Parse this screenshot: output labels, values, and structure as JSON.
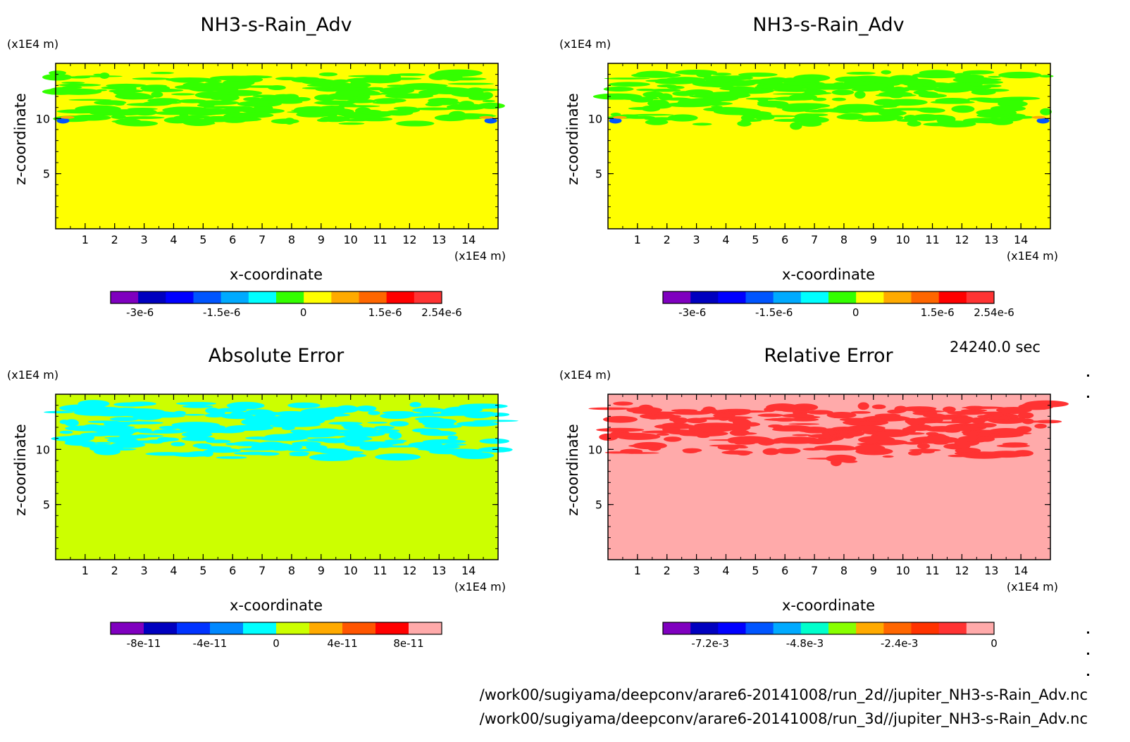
{
  "time_label": "24240.0 sec",
  "file_paths": [
    "/work00/sugiyama/deepconv/arare6-20141008/run_2d//jupiter_NH3-s-Rain_Adv.nc",
    "/work00/sugiyama/deepconv/arare6-20141008/run_3d//jupiter_NH3-s-Rain_Adv.nc"
  ],
  "chart_data": [
    {
      "type": "heatmap",
      "title": "NH3-s-Rain_Adv",
      "xlabel": "x-coordinate",
      "ylabel": "z-coordinate",
      "x_unit": "(x1E4 m)",
      "y_unit": "(x1E4 m)",
      "xlim": [
        0,
        15
      ],
      "ylim": [
        0,
        15
      ],
      "x_ticks": [
        "1",
        "2",
        "3",
        "4",
        "5",
        "6",
        "7",
        "8",
        "9",
        "10",
        "11",
        "12",
        "13",
        "14"
      ],
      "y_ticks": [
        "5",
        "10"
      ],
      "background_color": "#ffff00",
      "pattern_color": "#33ff00",
      "colorbar": {
        "colors": [
          "#7f00bf",
          "#0000bf",
          "#0000ff",
          "#0055ff",
          "#00aaff",
          "#00ffff",
          "#33ff00",
          "#ffff00",
          "#ffaa00",
          "#ff6600",
          "#ff0000",
          "#ff3333"
        ],
        "labels": [
          "-3e-6",
          "-1.5e-6",
          "0",
          "1.5e-6",
          "2.54e-6"
        ],
        "label_values": [
          -3e-06,
          -1.5e-06,
          0,
          1.5e-06,
          2.54e-06
        ],
        "range": [
          -3.54e-06,
          2.54e-06
        ]
      }
    },
    {
      "type": "heatmap",
      "title": "NH3-s-Rain_Adv",
      "xlabel": "x-coordinate",
      "ylabel": "z-coordinate",
      "x_unit": "(x1E4 m)",
      "y_unit": "(x1E4 m)",
      "xlim": [
        0,
        15
      ],
      "ylim": [
        0,
        15
      ],
      "x_ticks": [
        "1",
        "2",
        "3",
        "4",
        "5",
        "6",
        "7",
        "8",
        "9",
        "10",
        "11",
        "12",
        "13",
        "14"
      ],
      "y_ticks": [
        "5",
        "10"
      ],
      "background_color": "#ffff00",
      "pattern_color": "#33ff00",
      "colorbar": {
        "colors": [
          "#7f00bf",
          "#0000bf",
          "#0000ff",
          "#0055ff",
          "#00aaff",
          "#00ffff",
          "#33ff00",
          "#ffff00",
          "#ffaa00",
          "#ff6600",
          "#ff0000",
          "#ff3333"
        ],
        "labels": [
          "-3e-6",
          "-1.5e-6",
          "0",
          "1.5e-6",
          "2.54e-6"
        ],
        "label_values": [
          -3e-06,
          -1.5e-06,
          0,
          1.5e-06,
          2.54e-06
        ],
        "range": [
          -3.54e-06,
          2.54e-06
        ]
      }
    },
    {
      "type": "heatmap",
      "title": "Absolute Error",
      "xlabel": "x-coordinate",
      "ylabel": "z-coordinate",
      "x_unit": "(x1E4 m)",
      "y_unit": "(x1E4 m)",
      "xlim": [
        0,
        15
      ],
      "ylim": [
        0,
        15
      ],
      "x_ticks": [
        "1",
        "2",
        "3",
        "4",
        "5",
        "6",
        "7",
        "8",
        "9",
        "10",
        "11",
        "12",
        "13",
        "14"
      ],
      "y_ticks": [
        "5",
        "10"
      ],
      "background_color": "#ccff00",
      "pattern_color": "#00ffff",
      "colorbar": {
        "colors": [
          "#7f00bf",
          "#0000bf",
          "#0033ff",
          "#0088ff",
          "#00ffff",
          "#ccff00",
          "#ffaa00",
          "#ff5500",
          "#ff0000",
          "#ffaaaa"
        ],
        "labels": [
          "-8e-11",
          "-4e-11",
          "0",
          "4e-11",
          "8e-11"
        ],
        "label_values": [
          -8e-11,
          -4e-11,
          0,
          4e-11,
          8e-11
        ],
        "range": [
          -1e-10,
          1e-10
        ]
      }
    },
    {
      "type": "heatmap",
      "title": "Relative Error",
      "xlabel": "x-coordinate",
      "ylabel": "z-coordinate",
      "x_unit": "(x1E4 m)",
      "y_unit": "(x1E4 m)",
      "xlim": [
        0,
        15
      ],
      "ylim": [
        0,
        15
      ],
      "x_ticks": [
        "1",
        "2",
        "3",
        "4",
        "5",
        "6",
        "7",
        "8",
        "9",
        "10",
        "11",
        "12",
        "13",
        "14"
      ],
      "y_ticks": [
        "5",
        "10"
      ],
      "background_color": "#ffaaaa",
      "pattern_color": "#ff3333",
      "colorbar": {
        "colors": [
          "#7f00bf",
          "#0000bf",
          "#0000ff",
          "#0055ff",
          "#00aaff",
          "#00ffcc",
          "#88ff00",
          "#ffaa00",
          "#ff6600",
          "#ff3300",
          "#ff3333",
          "#ffaaaa"
        ],
        "labels": [
          "-7.2e-3",
          "-4.8e-3",
          "-2.4e-3",
          "0"
        ],
        "label_values": [
          -0.0072,
          -0.0048,
          -0.0024,
          0
        ],
        "range": [
          -0.0084,
          0
        ]
      }
    }
  ]
}
